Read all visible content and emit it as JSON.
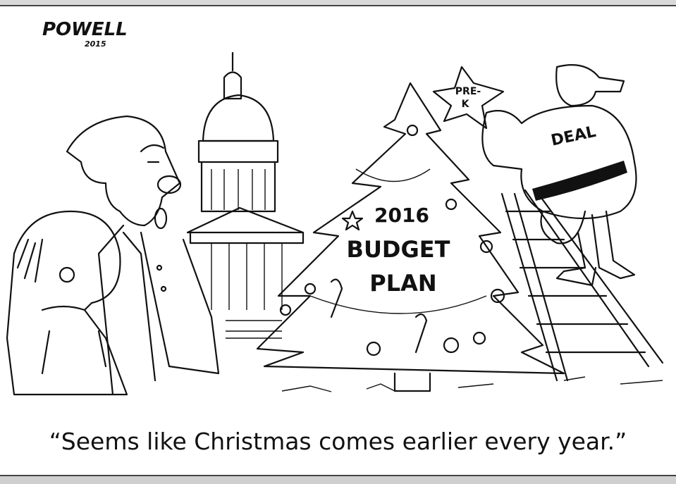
{
  "signature": {
    "name": "POWELL",
    "year": "2015"
  },
  "star": {
    "lines": [
      "PRE-",
      "K"
    ]
  },
  "tree": {
    "lines": [
      "2016",
      "BUDGET",
      "PLAN"
    ]
  },
  "santa": {
    "label": "DEAL"
  },
  "caption": "“Seems like Christmas comes earlier every year.”"
}
